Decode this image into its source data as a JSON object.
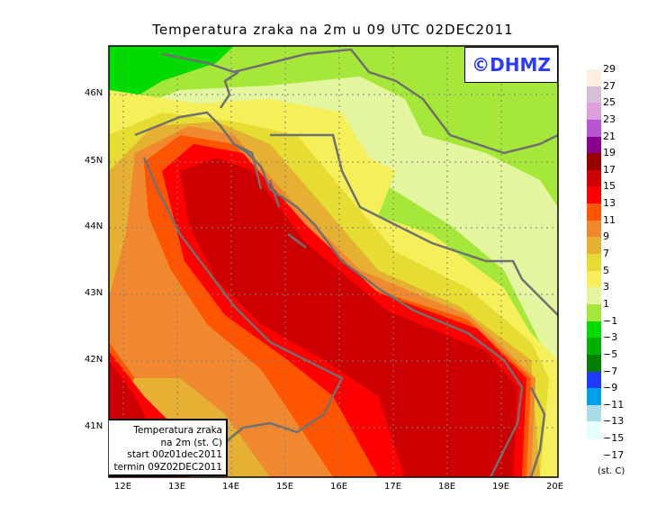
{
  "title": "Temperatura zraka na 2m u 09 UTC 02DEC2011",
  "logo": "©DHMZ",
  "info_box": [
    "Temperatura zraka",
    "na 2m (st. C)",
    "start 00z01dec2011",
    "termin 09Z02DEC2011"
  ],
  "lon_ticks": [
    "12E",
    "13E",
    "14E",
    "15E",
    "16E",
    "17E",
    "18E",
    "19E",
    "20E"
  ],
  "lat_ticks": [
    "46N",
    "45N",
    "44N",
    "43N",
    "42N",
    "41N"
  ],
  "legend": {
    "unit": "(st. C)",
    "labels": [
      "29",
      "27",
      "25",
      "23",
      "21",
      "19",
      "17",
      "15",
      "13",
      "11",
      "9",
      "7",
      "5",
      "3",
      "1",
      "−1",
      "−3",
      "−5",
      "−7",
      "−9",
      "−11",
      "−13",
      "−15",
      "−17"
    ],
    "colors": [
      "#ffeedd",
      "#d8bfd8",
      "#dda0dd",
      "#b855d0",
      "#8b008b",
      "#990000",
      "#cc0000",
      "#ff0000",
      "#ff5500",
      "#f08830",
      "#e6b032",
      "#e6dc32",
      "#f5f05a",
      "#e4f5a0",
      "#a6e83a",
      "#00dc00",
      "#00af00",
      "#007f00",
      "#1e3cff",
      "#00a0e6",
      "#aadde6",
      "#e6ffff"
    ]
  },
  "map_colors": {
    "coastline": "#707070",
    "grid": "#808080"
  }
}
